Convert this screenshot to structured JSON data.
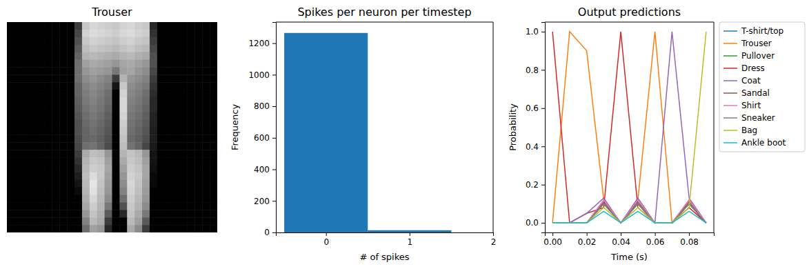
{
  "chart_data": [
    {
      "type": "heatmap",
      "title": "Trouser",
      "tick_labels": false,
      "zlim": [
        0,
        255
      ],
      "cells": [
        [
          0,
          0,
          0,
          0,
          0,
          0,
          0,
          0,
          0,
          60,
          200,
          215,
          210,
          205,
          200,
          210,
          215,
          205,
          200,
          40,
          0,
          0,
          0,
          0,
          0,
          0,
          0,
          0
        ],
        [
          0,
          0,
          0,
          0,
          0,
          0,
          0,
          0,
          0,
          70,
          210,
          220,
          215,
          210,
          205,
          215,
          220,
          210,
          205,
          50,
          0,
          0,
          0,
          0,
          0,
          0,
          0,
          0
        ],
        [
          0,
          0,
          0,
          0,
          0,
          0,
          0,
          0,
          0,
          80,
          200,
          210,
          205,
          200,
          195,
          205,
          210,
          200,
          195,
          60,
          0,
          0,
          0,
          0,
          0,
          0,
          0,
          0
        ],
        [
          0,
          0,
          0,
          0,
          0,
          0,
          0,
          0,
          0,
          90,
          190,
          200,
          195,
          190,
          185,
          195,
          200,
          190,
          185,
          70,
          0,
          0,
          0,
          0,
          0,
          0,
          0,
          0
        ],
        [
          0,
          0,
          0,
          0,
          0,
          0,
          0,
          0,
          0,
          100,
          180,
          185,
          180,
          175,
          170,
          180,
          185,
          175,
          170,
          80,
          0,
          0,
          0,
          0,
          0,
          0,
          0,
          0
        ],
        [
          0,
          0,
          0,
          0,
          0,
          0,
          0,
          0,
          0,
          110,
          160,
          170,
          165,
          160,
          150,
          165,
          170,
          160,
          150,
          80,
          0,
          0,
          0,
          0,
          0,
          0,
          0,
          0
        ],
        [
          0,
          0,
          0,
          0,
          0,
          0,
          0,
          0,
          0,
          110,
          150,
          160,
          155,
          150,
          120,
          160,
          165,
          150,
          140,
          70,
          0,
          0,
          0,
          0,
          0,
          0,
          0,
          0
        ],
        [
          0,
          0,
          0,
          0,
          0,
          0,
          0,
          0,
          0,
          110,
          140,
          150,
          140,
          130,
          60,
          180,
          150,
          140,
          130,
          60,
          0,
          0,
          0,
          0,
          0,
          0,
          0,
          0
        ],
        [
          0,
          0,
          0,
          0,
          0,
          0,
          0,
          0,
          0,
          100,
          130,
          140,
          130,
          120,
          20,
          200,
          140,
          130,
          120,
          50,
          0,
          0,
          0,
          0,
          0,
          0,
          0,
          0
        ],
        [
          0,
          0,
          0,
          0,
          0,
          0,
          0,
          0,
          0,
          100,
          125,
          135,
          125,
          110,
          0,
          210,
          135,
          125,
          110,
          45,
          0,
          0,
          0,
          0,
          0,
          0,
          0,
          0
        ],
        [
          0,
          0,
          0,
          0,
          0,
          0,
          0,
          0,
          0,
          95,
          120,
          130,
          120,
          105,
          0,
          215,
          130,
          120,
          105,
          40,
          0,
          0,
          0,
          0,
          0,
          0,
          0,
          0
        ],
        [
          0,
          0,
          0,
          0,
          0,
          0,
          0,
          0,
          0,
          90,
          115,
          125,
          115,
          100,
          0,
          215,
          125,
          115,
          100,
          40,
          0,
          0,
          0,
          0,
          0,
          0,
          0,
          0
        ],
        [
          0,
          0,
          0,
          0,
          0,
          0,
          0,
          0,
          0,
          85,
          110,
          120,
          110,
          95,
          0,
          210,
          120,
          110,
          95,
          35,
          0,
          0,
          0,
          0,
          0,
          0,
          0,
          0
        ],
        [
          0,
          0,
          0,
          0,
          0,
          0,
          0,
          0,
          0,
          80,
          105,
          115,
          105,
          90,
          0,
          205,
          115,
          105,
          90,
          35,
          0,
          0,
          0,
          0,
          0,
          0,
          0,
          0
        ],
        [
          0,
          0,
          0,
          0,
          0,
          0,
          0,
          0,
          0,
          80,
          100,
          110,
          100,
          85,
          0,
          200,
          110,
          100,
          85,
          30,
          0,
          0,
          0,
          0,
          0,
          0,
          0,
          0
        ],
        [
          0,
          0,
          0,
          0,
          0,
          0,
          0,
          0,
          0,
          75,
          100,
          105,
          95,
          80,
          0,
          195,
          105,
          95,
          80,
          30,
          0,
          0,
          0,
          0,
          0,
          0,
          0,
          0
        ],
        [
          0,
          0,
          0,
          0,
          0,
          0,
          0,
          0,
          0,
          70,
          110,
          115,
          100,
          75,
          0,
          190,
          115,
          100,
          70,
          25,
          0,
          0,
          0,
          0,
          0,
          0,
          0,
          0
        ],
        [
          0,
          0,
          0,
          0,
          0,
          0,
          0,
          0,
          0,
          60,
          170,
          190,
          185,
          150,
          0,
          180,
          195,
          185,
          150,
          20,
          0,
          0,
          0,
          0,
          0,
          0,
          0,
          0
        ],
        [
          0,
          0,
          0,
          0,
          0,
          0,
          0,
          0,
          0,
          50,
          180,
          200,
          195,
          160,
          0,
          170,
          200,
          190,
          160,
          20,
          0,
          0,
          0,
          0,
          0,
          0,
          0,
          0
        ],
        [
          0,
          0,
          0,
          0,
          0,
          0,
          0,
          0,
          0,
          40,
          185,
          205,
          200,
          165,
          0,
          160,
          205,
          195,
          165,
          15,
          0,
          0,
          0,
          0,
          0,
          0,
          0,
          0
        ],
        [
          0,
          0,
          0,
          0,
          0,
          0,
          0,
          0,
          0,
          30,
          190,
          220,
          200,
          160,
          0,
          150,
          210,
          200,
          165,
          10,
          0,
          0,
          0,
          0,
          0,
          0,
          0,
          0
        ],
        [
          0,
          0,
          0,
          0,
          0,
          0,
          0,
          0,
          0,
          20,
          185,
          230,
          195,
          155,
          0,
          140,
          215,
          195,
          160,
          10,
          0,
          0,
          0,
          0,
          0,
          0,
          0,
          0
        ],
        [
          0,
          0,
          0,
          0,
          0,
          0,
          0,
          0,
          0,
          10,
          180,
          225,
          190,
          150,
          0,
          130,
          210,
          190,
          155,
          0,
          0,
          0,
          0,
          0,
          0,
          0,
          0,
          0
        ],
        [
          0,
          0,
          0,
          0,
          0,
          0,
          0,
          0,
          0,
          0,
          175,
          215,
          185,
          140,
          0,
          110,
          205,
          185,
          150,
          0,
          0,
          0,
          0,
          0,
          0,
          0,
          0,
          0
        ],
        [
          0,
          0,
          0,
          0,
          0,
          0,
          0,
          0,
          0,
          0,
          165,
          205,
          180,
          120,
          0,
          80,
          200,
          180,
          140,
          0,
          0,
          0,
          0,
          0,
          0,
          0,
          0,
          0
        ],
        [
          0,
          0,
          0,
          0,
          0,
          0,
          0,
          0,
          0,
          0,
          150,
          195,
          175,
          90,
          0,
          40,
          195,
          170,
          120,
          0,
          0,
          0,
          0,
          0,
          0,
          0,
          0,
          0
        ],
        [
          0,
          0,
          0,
          0,
          0,
          0,
          0,
          0,
          0,
          0,
          130,
          185,
          170,
          60,
          0,
          0,
          185,
          160,
          90,
          0,
          0,
          0,
          0,
          0,
          0,
          0,
          0,
          0
        ],
        [
          0,
          0,
          0,
          0,
          0,
          0,
          0,
          0,
          0,
          0,
          110,
          160,
          150,
          40,
          0,
          0,
          170,
          140,
          60,
          0,
          0,
          0,
          0,
          0,
          0,
          0,
          0,
          0
        ]
      ]
    },
    {
      "type": "histogram",
      "title": "Spikes per neuron per timestep",
      "x_label": "# of spikes",
      "y_label": "Frequency",
      "bins": [
        -0.5,
        0.5,
        1.5
      ],
      "counts": [
        1265,
        14
      ],
      "color": "#1f77b4",
      "xlim": [
        -0.6,
        2.0
      ],
      "xticks": [
        0,
        1,
        2
      ],
      "ylim": [
        0,
        1334
      ],
      "yticks": [
        0,
        200,
        400,
        600,
        800,
        1000,
        1200
      ]
    },
    {
      "type": "line",
      "title": "Output predictions",
      "x_label": "Time (s)",
      "y_label": "Probability",
      "x": [
        0,
        0.01,
        0.02,
        0.03,
        0.04,
        0.05,
        0.06,
        0.07,
        0.08,
        0.09
      ],
      "xlim": [
        -0.0045,
        0.0945
      ],
      "xticks": [
        {
          "value": 0,
          "label": "0.00"
        },
        {
          "value": 0.02,
          "label": "0.02"
        },
        {
          "value": 0.04,
          "label": "0.04"
        },
        {
          "value": 0.06,
          "label": "0.06"
        },
        {
          "value": 0.08,
          "label": "0.08"
        }
      ],
      "ylim": [
        -0.05,
        1.05
      ],
      "yticks": [
        {
          "value": 0,
          "label": "0.0"
        },
        {
          "value": 0.2,
          "label": "0.2"
        },
        {
          "value": 0.4,
          "label": "0.4"
        },
        {
          "value": 0.6,
          "label": "0.6"
        },
        {
          "value": 0.8,
          "label": "0.8"
        },
        {
          "value": 1,
          "label": "1.0"
        }
      ],
      "legend": "right",
      "series": [
        {
          "name": "T-shirt/top",
          "color": "#1f77b4",
          "values": [
            0,
            0,
            0,
            0.1,
            0,
            0.1,
            0,
            0,
            0.1,
            0
          ]
        },
        {
          "name": "Trouser",
          "color": "#ff7f0e",
          "values": [
            0,
            1,
            0.9,
            0.12,
            0,
            0.12,
            1,
            0,
            0.12,
            0
          ]
        },
        {
          "name": "Pullover",
          "color": "#2ca02c",
          "values": [
            0,
            0,
            0,
            0.1,
            0,
            0.1,
            0,
            0,
            0.1,
            0
          ]
        },
        {
          "name": "Dress",
          "color": "#d62728",
          "values": [
            1,
            0,
            0.05,
            0.08,
            1,
            0.08,
            0,
            0,
            0.08,
            0
          ]
        },
        {
          "name": "Coat",
          "color": "#9467bd",
          "values": [
            0,
            0,
            0.05,
            0.13,
            0,
            0.13,
            0,
            1,
            0.13,
            0
          ]
        },
        {
          "name": "Sandal",
          "color": "#8c564b",
          "values": [
            0,
            0,
            0,
            0.11,
            0,
            0.11,
            0,
            0,
            0.11,
            0
          ]
        },
        {
          "name": "Shirt",
          "color": "#e377c2",
          "values": [
            0,
            0,
            0,
            0.12,
            0,
            0.12,
            0,
            0,
            0.12,
            0
          ]
        },
        {
          "name": "Sneaker",
          "color": "#7f7f7f",
          "values": [
            0,
            0,
            0,
            0.1,
            0,
            0.1,
            0,
            0,
            0.1,
            0
          ]
        },
        {
          "name": "Bag",
          "color": "#bcbd22",
          "values": [
            0,
            0,
            0,
            0.08,
            0,
            0.08,
            0,
            0,
            0.08,
            1
          ]
        },
        {
          "name": "Ankle boot",
          "color": "#17becf",
          "values": [
            0,
            0,
            0,
            0.06,
            0,
            0.06,
            0,
            0,
            0.06,
            0
          ]
        }
      ]
    }
  ]
}
